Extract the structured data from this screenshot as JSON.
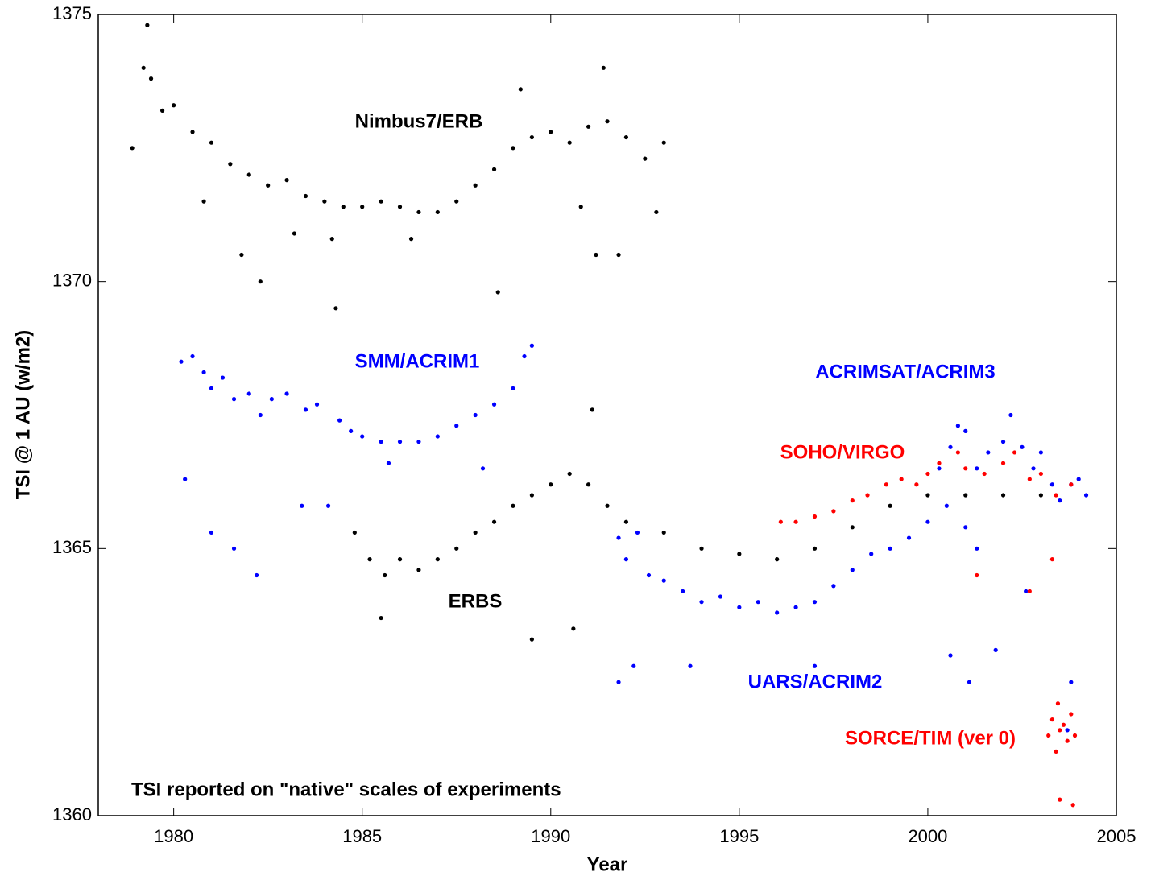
{
  "chart_data": {
    "type": "scatter",
    "xlabel": "Year",
    "ylabel": "TSI @ 1 AU (w/m2)",
    "annotation": "TSI reported on \"native\" scales of experiments",
    "xlim": [
      1978,
      2005
    ],
    "xticks": [
      1980,
      1985,
      1990,
      1995,
      2000,
      2005
    ],
    "ylim": [
      1360,
      1375
    ],
    "yticks": [
      1360,
      1365,
      1370,
      1375
    ],
    "series": [
      {
        "name": "Nimbus7/ERB",
        "color": "#000000",
        "x": [
          1978.9,
          1979.2,
          1979.4,
          1979.7,
          1980.0,
          1980.5,
          1981.0,
          1981.5,
          1982.0,
          1982.5,
          1983.0,
          1983.5,
          1984.0,
          1984.5,
          1985.0,
          1985.5,
          1986.0,
          1986.5,
          1987.0,
          1987.5,
          1988.0,
          1988.5,
          1989.0,
          1989.5,
          1990.0,
          1990.5,
          1991.0,
          1991.5,
          1992.0,
          1992.5,
          1993.0,
          1981.8,
          1982.3,
          1984.2,
          1984.3,
          1988.6,
          1991.2,
          1991.8,
          1992.8,
          1979.3,
          1980.8,
          1983.2,
          1986.3,
          1989.2,
          1990.8,
          1991.4
        ],
        "values": [
          1372.5,
          1374.0,
          1373.8,
          1373.2,
          1373.3,
          1372.8,
          1372.6,
          1372.2,
          1372.0,
          1371.8,
          1371.9,
          1371.6,
          1371.5,
          1371.4,
          1371.4,
          1371.5,
          1371.4,
          1371.3,
          1371.3,
          1371.5,
          1371.8,
          1372.1,
          1372.5,
          1372.7,
          1372.8,
          1372.6,
          1372.9,
          1373.0,
          1372.7,
          1372.3,
          1372.6,
          1370.5,
          1370.0,
          1370.8,
          1369.5,
          1369.8,
          1370.5,
          1370.5,
          1371.3,
          1374.8,
          1371.5,
          1370.9,
          1370.8,
          1373.6,
          1371.4,
          1374.0
        ]
      },
      {
        "name": "SMM/ACRIM1",
        "color": "#0000ff",
        "x": [
          1980.2,
          1980.5,
          1980.8,
          1981.0,
          1981.3,
          1981.6,
          1982.0,
          1982.3,
          1982.6,
          1983.0,
          1983.5,
          1983.8,
          1984.4,
          1984.7,
          1985.0,
          1985.5,
          1986.0,
          1986.5,
          1987.0,
          1987.5,
          1988.0,
          1988.5,
          1989.0,
          1989.3,
          1989.5,
          1980.3,
          1981.0,
          1981.6,
          1982.2,
          1983.4,
          1984.1,
          1985.7,
          1988.2
        ],
        "values": [
          1368.5,
          1368.6,
          1368.3,
          1368.0,
          1368.2,
          1367.8,
          1367.9,
          1367.5,
          1367.8,
          1367.9,
          1367.6,
          1367.7,
          1367.4,
          1367.2,
          1367.1,
          1367.0,
          1367.0,
          1367.0,
          1367.1,
          1367.3,
          1367.5,
          1367.7,
          1368.0,
          1368.6,
          1368.8,
          1366.3,
          1365.3,
          1365.0,
          1364.5,
          1365.8,
          1365.8,
          1366.6,
          1366.5
        ]
      },
      {
        "name": "ERBS",
        "color": "#000000",
        "x": [
          1984.8,
          1985.2,
          1985.6,
          1986.0,
          1986.5,
          1987.0,
          1987.5,
          1988.0,
          1988.5,
          1989.0,
          1989.5,
          1990.0,
          1990.5,
          1991.0,
          1991.5,
          1992.0,
          1993.0,
          1994.0,
          1995.0,
          1996.0,
          1997.0,
          1998.0,
          1999.0,
          2000.0,
          2001.0,
          2002.0,
          2003.0,
          1991.1,
          1989.5,
          1985.5,
          1990.6
        ],
        "values": [
          1365.3,
          1364.8,
          1364.5,
          1364.8,
          1364.6,
          1364.8,
          1365.0,
          1365.3,
          1365.5,
          1365.8,
          1366.0,
          1366.2,
          1366.4,
          1366.2,
          1365.8,
          1365.5,
          1365.3,
          1365.0,
          1364.9,
          1364.8,
          1365.0,
          1365.4,
          1365.8,
          1366.0,
          1366.0,
          1366.0,
          1366.0,
          1367.6,
          1363.3,
          1363.7,
          1363.5
        ]
      },
      {
        "name": "UARS/ACRIM2",
        "color": "#0000ff",
        "x": [
          1991.8,
          1992.0,
          1992.3,
          1992.6,
          1993.0,
          1993.5,
          1994.0,
          1994.5,
          1995.0,
          1995.5,
          1996.0,
          1996.5,
          1997.0,
          1997.5,
          1998.0,
          1998.5,
          1999.0,
          1999.5,
          2000.0,
          2000.5,
          2001.0,
          2001.3,
          1991.8,
          1992.2,
          1993.7,
          1997.0,
          2000.6,
          2001.1
        ],
        "values": [
          1365.2,
          1364.8,
          1365.3,
          1364.5,
          1364.4,
          1364.2,
          1364.0,
          1364.1,
          1363.9,
          1364.0,
          1363.8,
          1363.9,
          1364.0,
          1364.3,
          1364.6,
          1364.9,
          1365.0,
          1365.2,
          1365.5,
          1365.8,
          1365.4,
          1365.0,
          1362.5,
          1362.8,
          1362.8,
          1362.8,
          1363.0,
          1362.5
        ]
      },
      {
        "name": "ACRIMSAT/ACRIM3",
        "color": "#0000ff",
        "x": [
          2000.3,
          2000.6,
          2000.8,
          2001.0,
          2001.3,
          2001.6,
          2002.0,
          2002.2,
          2002.5,
          2002.8,
          2003.0,
          2003.3,
          2003.5,
          2003.8,
          2004.0,
          2004.2,
          2001.8,
          2003.7,
          2003.8,
          2002.6
        ],
        "values": [
          1366.5,
          1366.9,
          1367.3,
          1367.2,
          1366.5,
          1366.8,
          1367.0,
          1367.5,
          1366.9,
          1366.5,
          1366.8,
          1366.2,
          1365.9,
          1366.2,
          1366.3,
          1366.0,
          1363.1,
          1361.6,
          1362.5,
          1364.2
        ]
      },
      {
        "name": "SOHO/VIRGO",
        "color": "#ff0000",
        "x": [
          1996.1,
          1996.5,
          1997.0,
          1997.5,
          1998.0,
          1998.4,
          1998.9,
          1999.3,
          1999.7,
          2000.0,
          2000.3,
          2000.8,
          2001.0,
          2001.5,
          2002.0,
          2002.3,
          2002.7,
          2003.0,
          2003.4,
          2003.8,
          2001.3,
          2002.7,
          2003.3
        ],
        "values": [
          1365.5,
          1365.5,
          1365.6,
          1365.7,
          1365.9,
          1366.0,
          1366.2,
          1366.3,
          1366.2,
          1366.4,
          1366.6,
          1366.8,
          1366.5,
          1366.4,
          1366.6,
          1366.8,
          1366.3,
          1366.4,
          1366.0,
          1366.2,
          1364.5,
          1364.2,
          1364.8
        ]
      },
      {
        "name": "SORCE/TIM (ver 0)",
        "color": "#ff0000",
        "x": [
          2003.2,
          2003.3,
          2003.4,
          2003.5,
          2003.6,
          2003.7,
          2003.8,
          2003.9,
          2003.5,
          2003.85,
          2003.45
        ],
        "values": [
          1361.5,
          1361.8,
          1361.2,
          1361.6,
          1361.7,
          1361.4,
          1361.9,
          1361.5,
          1360.3,
          1360.2,
          1362.1
        ]
      }
    ]
  }
}
